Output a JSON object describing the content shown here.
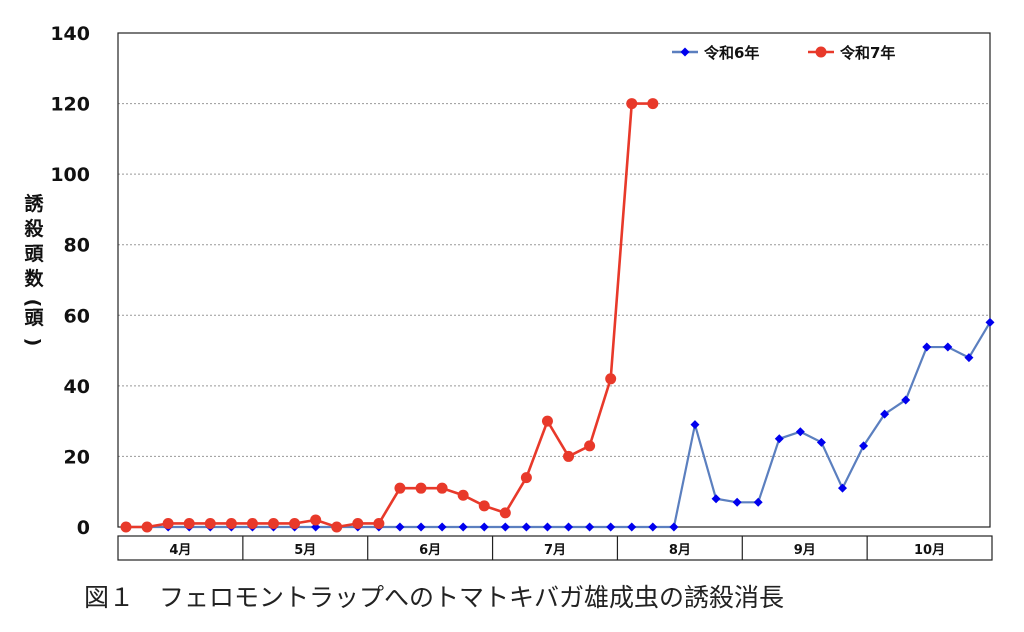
{
  "caption": "図１　フェロモントラップへのトマトキバガ雄成虫の誘殺消長",
  "chart_data": {
    "type": "line",
    "ylabel": "誘殺頭数(頭)",
    "ylim": [
      0,
      140
    ],
    "yticks": [
      0,
      20,
      40,
      60,
      80,
      100,
      120,
      140
    ],
    "grid": "horizontal dotted",
    "legend_position": "top-right",
    "months": [
      "4月",
      "5月",
      "6月",
      "7月",
      "8月",
      "9月",
      "10月"
    ],
    "x_count": 42,
    "series": [
      {
        "name": "令和6年",
        "color": "#5b7fbf",
        "marker": "diamond",
        "marker_color": "#0000ee",
        "values": [
          0,
          0,
          0,
          0,
          0,
          0,
          0,
          0,
          0,
          0,
          0,
          0,
          0,
          0,
          0,
          0,
          0,
          0,
          0,
          0,
          0,
          0,
          0,
          0,
          0,
          0,
          0,
          29,
          8,
          7,
          7,
          25,
          27,
          24,
          11,
          23,
          32,
          36,
          51,
          51,
          48,
          58
        ]
      },
      {
        "name": "令和7年",
        "color": "#e8392a",
        "marker": "circle",
        "marker_color": "#e8392a",
        "values": [
          0,
          0,
          1,
          1,
          1,
          1,
          1,
          1,
          1,
          2,
          0,
          1,
          1,
          11,
          11,
          11,
          9,
          6,
          4,
          14,
          30,
          20,
          23,
          42,
          120,
          120
        ]
      }
    ]
  }
}
